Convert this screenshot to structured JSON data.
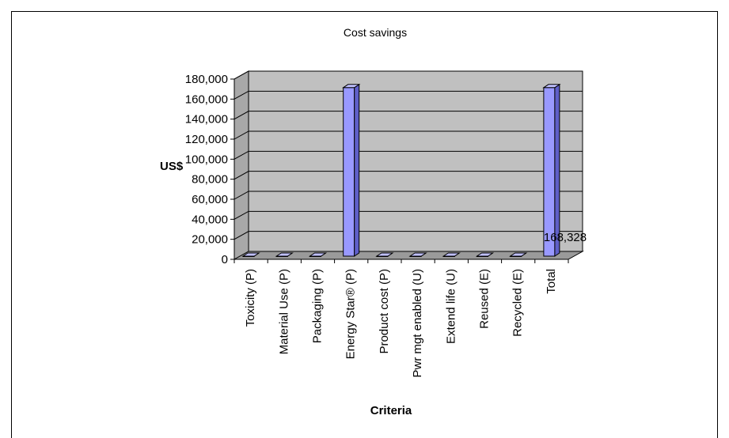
{
  "chart_data": {
    "type": "bar",
    "title": "Cost savings",
    "xlabel": "Criteria",
    "ylabel": "US$",
    "ylim": [
      0,
      180000
    ],
    "yticks": [
      0,
      20000,
      40000,
      60000,
      80000,
      100000,
      120000,
      140000,
      160000,
      180000
    ],
    "ytick_labels": [
      "0",
      "20,000",
      "40,000",
      "60,000",
      "80,000",
      "100,000",
      "120,000",
      "140,000",
      "160,000",
      "180,000"
    ],
    "categories": [
      "Toxicity (P)",
      "Material Use (P)",
      "Packaging (P)",
      "Energy Star® (P)",
      "Product cost (P)",
      "Pwr mgt enabled (U)",
      "Extend life (U)",
      "Reused (E)",
      "Recycled (E)",
      "Total"
    ],
    "values": [
      0,
      0,
      0,
      168328,
      0,
      0,
      0,
      0,
      0,
      168328
    ],
    "data_labels": [
      {
        "category": "Total",
        "text": "168,328"
      }
    ],
    "grid": true,
    "legend": "none",
    "colors": {
      "bar": "#9999FF",
      "bar_side": "#5F5FC8",
      "bar_top": "#C0C0FF",
      "plot_bg": "#C0C0C0",
      "floor": "#9A9A9A"
    }
  }
}
